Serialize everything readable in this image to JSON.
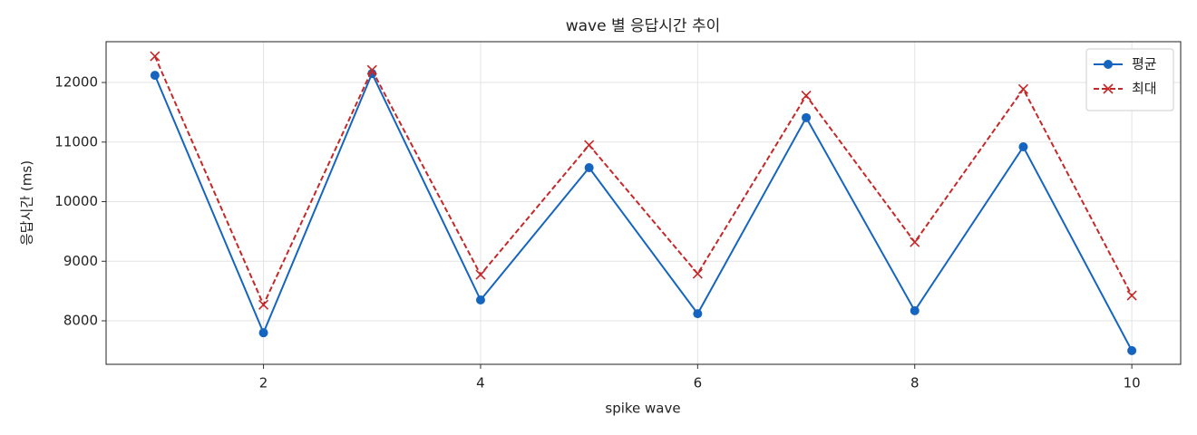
{
  "chart_data": {
    "type": "line",
    "title": "wave 별 응답시간 추이",
    "xlabel": "spike wave",
    "ylabel": "응답시간 (ms)",
    "x": [
      1,
      2,
      3,
      4,
      5,
      6,
      7,
      8,
      9,
      10
    ],
    "series": [
      {
        "name": "평균",
        "color": "#1565c0",
        "marker": "o",
        "linestyle": "-",
        "values": [
          12120,
          7800,
          12150,
          8350,
          10570,
          8120,
          11410,
          8170,
          10920,
          7500
        ]
      },
      {
        "name": "최대",
        "color": "#c62828",
        "marker": "x",
        "linestyle": "--",
        "values": [
          12440,
          8270,
          12210,
          8775,
          10950,
          8790,
          11780,
          9320,
          11890,
          8425
        ]
      }
    ],
    "xlim": [
      0.55,
      10.45
    ],
    "xticks": [
      2,
      4,
      6,
      8,
      10
    ],
    "ylim": [
      7270,
      12685
    ],
    "yticks": [
      8000,
      9000,
      10000,
      11000,
      12000
    ],
    "grid": true,
    "legend": "upper right"
  }
}
